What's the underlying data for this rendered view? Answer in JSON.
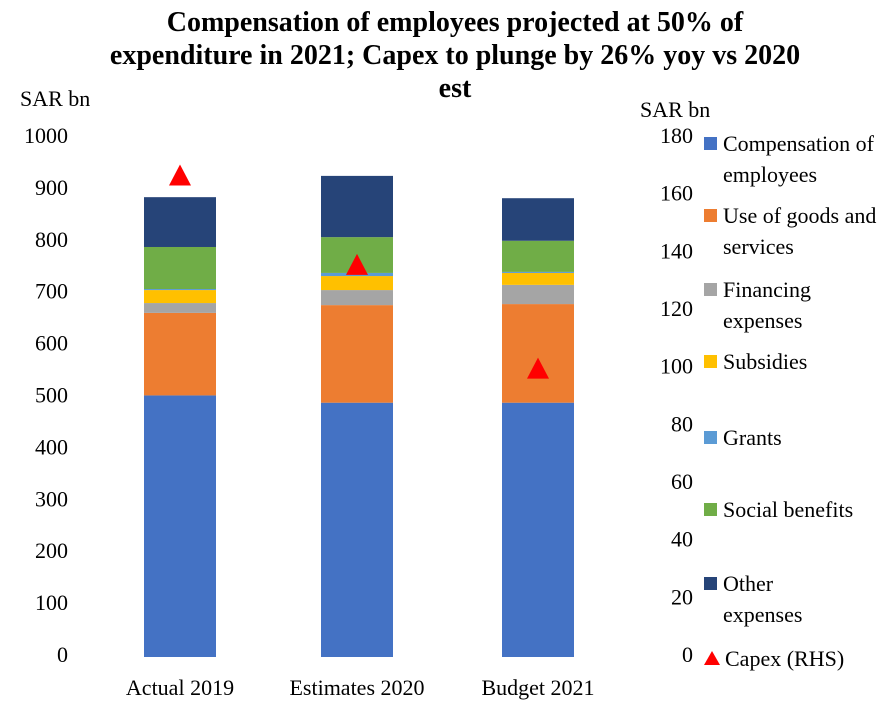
{
  "chart_data": {
    "type": "stacked_bar",
    "title": "Compensation of employees projected at  50% of expenditure in 2021; Capex to plunge by 26% yoy vs 2020 est",
    "y_label": "SAR bn",
    "y2_label": "SAR bn",
    "categories": [
      "Actual 2019",
      "Estimates 2020",
      "Budget 2021"
    ],
    "series": [
      {
        "name": "Compensation of employees",
        "color": "#4472c4",
        "values": [
          504,
          490,
          490
        ]
      },
      {
        "name": "Use of goods and services",
        "color": "#ed7d31",
        "values": [
          159,
          188,
          190
        ]
      },
      {
        "name": "Financing expenses",
        "color": "#a5a5a5",
        "values": [
          19,
          29,
          37
        ]
      },
      {
        "name": "Subsidies",
        "color": "#ffc000",
        "values": [
          25,
          27,
          23
        ]
      },
      {
        "name": "Grants",
        "color": "#5b9bd5",
        "values": [
          2,
          6,
          2
        ]
      },
      {
        "name": "Social benefits",
        "color": "#70ad47",
        "values": [
          81,
          69,
          60
        ]
      },
      {
        "name": "Other expenses",
        "color": "#264478",
        "values": [
          96,
          118,
          82
        ]
      },
      {
        "name": "Capex (RHS)",
        "color": "#ff0000",
        "axis": "y2",
        "type": "marker",
        "values": [
          167,
          136,
          100
        ]
      }
    ],
    "ylim": [
      0,
      1000
    ],
    "yticks": [
      0,
      100,
      200,
      300,
      400,
      500,
      600,
      700,
      800,
      900,
      1000
    ],
    "y2lim": [
      0,
      180
    ],
    "y2ticks": [
      0,
      20,
      40,
      60,
      80,
      100,
      120,
      140,
      160,
      180
    ],
    "legend": "right",
    "grid": false
  }
}
